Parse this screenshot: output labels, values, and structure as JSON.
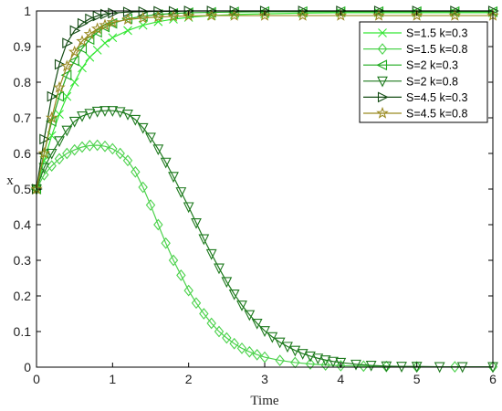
{
  "chart_data": {
    "type": "line",
    "title": "",
    "xlabel": "Time",
    "ylabel": "x",
    "xlim": [
      0,
      6
    ],
    "ylim": [
      0,
      1
    ],
    "xticks": [
      0,
      1,
      2,
      3,
      4,
      5,
      6
    ],
    "yticks": [
      0,
      0.1,
      0.2,
      0.3,
      0.4,
      0.5,
      0.6,
      0.7,
      0.8,
      0.9,
      1
    ],
    "grid": false,
    "legend_position": "top-right",
    "series": [
      {
        "name": "S=1.5 k=0.3",
        "color": "#33e633",
        "marker": "x",
        "x": [
          0,
          0.1,
          0.2,
          0.3,
          0.4,
          0.5,
          0.6,
          0.7,
          0.8,
          0.9,
          1,
          1.2,
          1.4,
          1.6,
          1.8,
          2,
          2.3,
          2.6,
          3,
          3.5,
          4,
          4.5,
          5,
          5.5,
          6
        ],
        "y": [
          0.5,
          0.58,
          0.65,
          0.71,
          0.76,
          0.8,
          0.84,
          0.87,
          0.89,
          0.91,
          0.925,
          0.945,
          0.96,
          0.97,
          0.977,
          0.982,
          0.987,
          0.99,
          0.992,
          0.994,
          0.995,
          0.995,
          0.995,
          0.995,
          0.995
        ]
      },
      {
        "name": "S=1.5 k=0.8",
        "color": "#4cd24c",
        "marker": "diamond",
        "x": [
          0,
          0.1,
          0.2,
          0.3,
          0.4,
          0.5,
          0.6,
          0.7,
          0.8,
          0.9,
          1,
          1.1,
          1.2,
          1.3,
          1.4,
          1.5,
          1.6,
          1.7,
          1.8,
          1.9,
          2,
          2.1,
          2.2,
          2.3,
          2.4,
          2.5,
          2.6,
          2.7,
          2.8,
          2.9,
          3,
          3.2,
          3.4,
          3.6,
          3.8,
          4,
          4.3,
          4.6,
          5,
          5.5,
          6
        ],
        "y": [
          0.5,
          0.54,
          0.565,
          0.585,
          0.6,
          0.61,
          0.618,
          0.622,
          0.623,
          0.62,
          0.613,
          0.6,
          0.58,
          0.548,
          0.505,
          0.455,
          0.4,
          0.348,
          0.3,
          0.258,
          0.215,
          0.18,
          0.15,
          0.123,
          0.1,
          0.082,
          0.066,
          0.053,
          0.043,
          0.035,
          0.028,
          0.019,
          0.013,
          0.009,
          0.006,
          0.004,
          0.003,
          0.002,
          0.001,
          0.001,
          0.001
        ]
      },
      {
        "name": "S=2 k=0.3",
        "color": "#1eaa1e",
        "marker": "triangle-left",
        "x": [
          0,
          0.1,
          0.2,
          0.3,
          0.4,
          0.5,
          0.6,
          0.7,
          0.8,
          0.9,
          1,
          1.2,
          1.4,
          1.6,
          1.8,
          2,
          2.3,
          2.6,
          3,
          3.5,
          4,
          4.5,
          5,
          5.5,
          6
        ],
        "y": [
          0.5,
          0.6,
          0.69,
          0.76,
          0.82,
          0.86,
          0.895,
          0.92,
          0.94,
          0.955,
          0.965,
          0.978,
          0.985,
          0.99,
          0.993,
          0.995,
          0.996,
          0.997,
          0.998,
          0.998,
          0.998,
          0.998,
          0.998,
          0.998,
          0.998
        ]
      },
      {
        "name": "S=2 k=0.8",
        "color": "#1e7a1e",
        "marker": "triangle-down",
        "x": [
          0,
          0.1,
          0.2,
          0.3,
          0.4,
          0.5,
          0.6,
          0.7,
          0.8,
          0.9,
          1,
          1.1,
          1.2,
          1.3,
          1.4,
          1.5,
          1.6,
          1.7,
          1.8,
          1.9,
          2,
          2.1,
          2.2,
          2.3,
          2.4,
          2.5,
          2.6,
          2.7,
          2.8,
          2.9,
          3,
          3.1,
          3.2,
          3.3,
          3.4,
          3.5,
          3.6,
          3.7,
          3.8,
          3.9,
          4,
          4.2,
          4.4,
          4.6,
          4.8,
          5,
          5.3,
          5.6,
          6
        ],
        "y": [
          0.5,
          0.56,
          0.6,
          0.635,
          0.665,
          0.69,
          0.705,
          0.712,
          0.718,
          0.72,
          0.72,
          0.717,
          0.71,
          0.695,
          0.672,
          0.645,
          0.612,
          0.575,
          0.535,
          0.492,
          0.45,
          0.405,
          0.36,
          0.318,
          0.278,
          0.24,
          0.205,
          0.174,
          0.147,
          0.123,
          0.102,
          0.085,
          0.07,
          0.058,
          0.047,
          0.038,
          0.031,
          0.025,
          0.02,
          0.016,
          0.013,
          0.008,
          0.005,
          0.003,
          0.002,
          0.002,
          0.001,
          0.001,
          0.001
        ]
      },
      {
        "name": "S=4.5 k=0.3",
        "color": "#124a12",
        "marker": "triangle-right",
        "x": [
          0,
          0.1,
          0.2,
          0.3,
          0.4,
          0.5,
          0.6,
          0.7,
          0.8,
          0.9,
          1,
          1.2,
          1.4,
          1.6,
          1.8,
          2,
          2.3,
          2.6,
          3,
          3.5,
          4,
          4.5,
          5,
          5.5,
          6
        ],
        "y": [
          0.5,
          0.64,
          0.76,
          0.85,
          0.91,
          0.945,
          0.965,
          0.978,
          0.986,
          0.991,
          0.994,
          0.997,
          0.998,
          0.999,
          0.999,
          1,
          1,
          1,
          1,
          1,
          1,
          1,
          1,
          1,
          1
        ]
      },
      {
        "name": "S=4.5 k=0.8",
        "color": "#9a8a22",
        "marker": "star",
        "x": [
          0,
          0.1,
          0.2,
          0.3,
          0.4,
          0.5,
          0.6,
          0.7,
          0.8,
          0.9,
          1,
          1.2,
          1.4,
          1.6,
          1.8,
          2,
          2.3,
          2.6,
          3,
          3.5,
          4,
          4.5,
          5,
          5.5,
          6
        ],
        "y": [
          0.5,
          0.6,
          0.7,
          0.785,
          0.845,
          0.885,
          0.915,
          0.935,
          0.95,
          0.96,
          0.968,
          0.976,
          0.98,
          0.983,
          0.985,
          0.986,
          0.987,
          0.987,
          0.987,
          0.987,
          0.987,
          0.987,
          0.987,
          0.987,
          0.987
        ]
      }
    ]
  }
}
